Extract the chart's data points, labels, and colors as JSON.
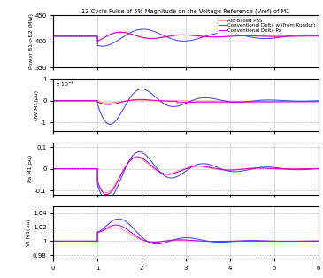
{
  "title": "12-Cycle Pulse of 5% Magnitude on the Voltage Reference (Vref) of M1",
  "xlim": [
    0,
    6
  ],
  "xticks": [
    0,
    1,
    2,
    3,
    4,
    5,
    6
  ],
  "colors": {
    "AiB": "#FF9999",
    "delta_w": "#4444FF",
    "delta_pa": "#CC00CC"
  },
  "legend": [
    "AiB-Based PSS",
    "Conventional Delta w (from Kundur)",
    "Conventional Delta Pa"
  ],
  "subplot1": {
    "ylabel": "Power B1->B2 (MW)",
    "ylim": [
      350,
      450
    ],
    "yticks": [
      350,
      400,
      450
    ],
    "baseline": 410
  },
  "subplot2": {
    "ylabel": "dW M1(pu)",
    "ylim": [
      -0.0014,
      0.001
    ],
    "yticks": [
      -0.001,
      0,
      0.001
    ]
  },
  "subplot3": {
    "ylabel": "Pa M1(pu)",
    "ylim": [
      -0.12,
      0.12
    ],
    "yticks": [
      -0.1,
      0,
      0.1
    ]
  },
  "subplot4": {
    "ylabel": "Vt M1(pu)",
    "ylim": [
      0.975,
      1.05
    ],
    "yticks": [
      0.98,
      1.0,
      1.02,
      1.04
    ]
  }
}
